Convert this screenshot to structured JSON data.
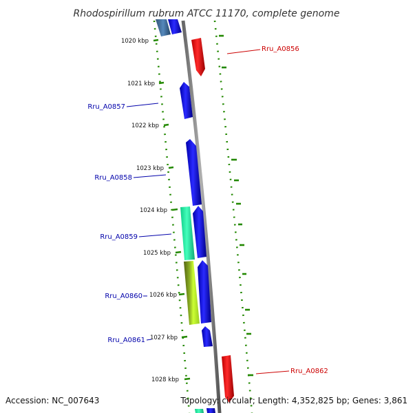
{
  "title": "Rhodospirillum rubrum ATCC 11170, complete genome",
  "footer": {
    "accession": "Accession: NC_007643",
    "topology": "Topology: circular; Length: 4,352,825 bp; Genes: 3,861"
  },
  "ticks": [
    {
      "label": "1020 kbp"
    },
    {
      "label": "1021 kbp"
    },
    {
      "label": "1022 kbp"
    },
    {
      "label": "1023 kbp"
    },
    {
      "label": "1024 kbp"
    },
    {
      "label": "1025 kbp"
    },
    {
      "label": "1026 kbp"
    },
    {
      "label": "1027 kbp"
    },
    {
      "label": "1028 kbp"
    }
  ],
  "genes": [
    {
      "label": "Rru_A0856",
      "color": "#cc0000"
    },
    {
      "label": "Rru_A0857",
      "color": "#0000aa"
    },
    {
      "label": "Rru_A0858",
      "color": "#0000aa"
    },
    {
      "label": "Rru_A0859",
      "color": "#0000aa"
    },
    {
      "label": "Rru_A0860",
      "color": "#0000aa"
    },
    {
      "label": "Rru_A0861",
      "color": "#0000aa"
    },
    {
      "label": "Rru_A0862",
      "color": "#cc0000"
    }
  ],
  "colors": {
    "forward_cds": "#0000ff",
    "reverse_cds": "#ff0000",
    "backbone": "#888888",
    "gc_dots": "#228800",
    "teal_feature": "#22ffaa",
    "olive_feature": "#779922",
    "lime_feature": "#ccff33",
    "steel_feature": "#4477aa"
  }
}
